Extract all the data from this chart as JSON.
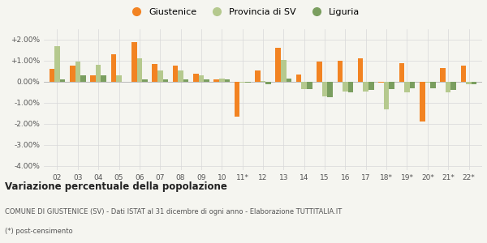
{
  "years": [
    "02",
    "03",
    "04",
    "05",
    "06",
    "07",
    "08",
    "09",
    "10",
    "11*",
    "12",
    "13",
    "14",
    "15",
    "16",
    "17",
    "18*",
    "19*",
    "20*",
    "21*",
    "22*"
  ],
  "giustenice": [
    0.6,
    0.75,
    0.3,
    1.3,
    1.9,
    0.85,
    0.75,
    0.4,
    0.1,
    -1.65,
    0.55,
    1.6,
    0.35,
    0.95,
    1.0,
    1.1,
    -0.05,
    0.9,
    -1.9,
    0.65,
    0.75
  ],
  "provincia_sv": [
    1.7,
    0.95,
    0.8,
    0.3,
    1.1,
    0.55,
    0.55,
    0.3,
    0.15,
    -0.05,
    0.05,
    1.05,
    -0.35,
    -0.7,
    -0.45,
    -0.45,
    -1.3,
    -0.5,
    -0.05,
    -0.5,
    -0.1
  ],
  "liguria": [
    0.1,
    0.3,
    0.3,
    0.0,
    0.1,
    0.1,
    0.1,
    0.1,
    0.1,
    -0.05,
    -0.1,
    0.15,
    -0.35,
    -0.75,
    -0.5,
    -0.4,
    -0.35,
    -0.3,
    -0.3,
    -0.4,
    -0.1
  ],
  "color_giustenice": "#f28322",
  "color_provincia": "#b5c98e",
  "color_liguria": "#7a9e5f",
  "ylim": [
    -4.2,
    2.5
  ],
  "yticks": [
    -4.0,
    -3.0,
    -2.0,
    -1.0,
    0.0,
    1.0,
    2.0
  ],
  "ytick_labels": [
    "-4.00%",
    "-3.00%",
    "-2.00%",
    "-1.00%",
    "0.00%",
    "+1.00%",
    "+2.00%"
  ],
  "legend_labels": [
    "Giustenice",
    "Provincia di SV",
    "Liguria"
  ],
  "title_bold": "Variazione percentuale della popolazione",
  "footnote1": "COMUNE DI GIUSTENICE (SV) - Dati ISTAT al 31 dicembre di ogni anno - Elaborazione TUTTITALIA.IT",
  "footnote2": "(*) post-censimento",
  "bg_color": "#f5f5f0",
  "grid_color": "#d8d8d8"
}
